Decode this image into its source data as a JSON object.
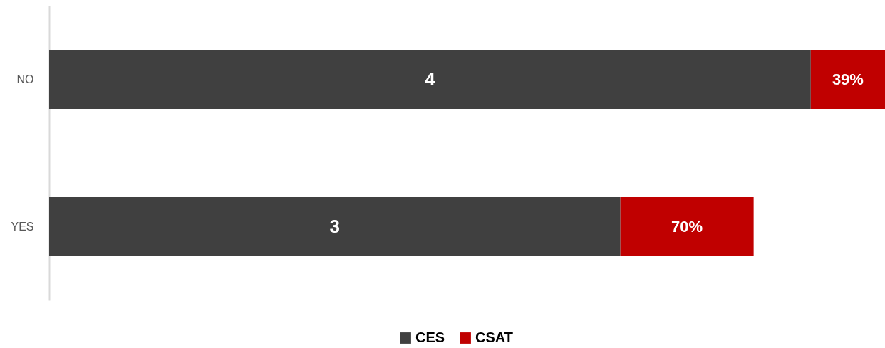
{
  "chart_data": {
    "type": "bar",
    "orientation": "horizontal",
    "stacked": true,
    "categories": [
      "NO",
      "YES"
    ],
    "series": [
      {
        "name": "CES",
        "color": "#404040",
        "values": [
          4,
          3
        ],
        "value_labels": [
          "4",
          "3"
        ]
      },
      {
        "name": "CSAT",
        "color": "#c00000",
        "values": [
          0.39,
          0.7
        ],
        "value_labels": [
          "39%",
          "70%"
        ]
      }
    ],
    "legend": "bottom"
  }
}
